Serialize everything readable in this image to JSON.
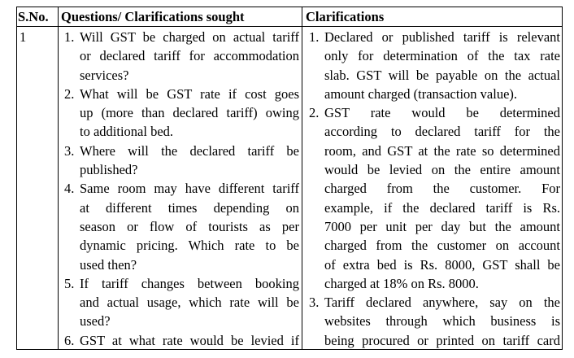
{
  "headers": {
    "sno": "S.No.",
    "questions": "Questions/ Clarifications sought",
    "clarifications": "Clarifications"
  },
  "row": {
    "sno": "1",
    "questions": [
      {
        "num": "1.",
        "lines": [
          "Will GST be charged on actual tariff",
          "or declared tariff for accommodation",
          "services?"
        ]
      },
      {
        "num": "2.",
        "lines": [
          "What will be GST rate if cost goes",
          "up (more than declared tariff) owing",
          "to additional bed."
        ]
      },
      {
        "num": "3.",
        "lines": [
          "Where will the declared tariff be",
          "published?"
        ]
      },
      {
        "num": "4.",
        "lines": [
          "Same room may have different tariff",
          "at different times depending on",
          "season or flow of tourists as per",
          "dynamic pricing. Which rate to be",
          "used then?"
        ]
      },
      {
        "num": "5.",
        "lines": [
          "If tariff changes between booking",
          "and actual usage, which rate will be",
          "used?"
        ]
      },
      {
        "num": "6.",
        "lines": [
          "GST at what rate would be levied if"
        ],
        "continues": true
      }
    ],
    "clarifications": [
      {
        "num": "1.",
        "lines": [
          "Declared or published tariff is relevant",
          "only for determination of the tax rate",
          "slab. GST will be payable on the actual",
          "amount charged (transaction value)."
        ]
      },
      {
        "num": "2.",
        "lines": [
          "GST rate would be determined",
          "according to declared tariff for the",
          "room, and GST at the rate so determined",
          "would be levied on the entire amount",
          "charged from the customer. For",
          "example, if the declared tariff is Rs.",
          "7000 per unit per day but the amount",
          "charged from the customer on account",
          "of extra bed is Rs. 8000, GST shall be",
          "charged at 18% on Rs. 8000."
        ]
      },
      {
        "num": "3.",
        "lines": [
          "Tariff declared anywhere, say on the",
          "websites through which business is",
          "being procured or printed on tariff card"
        ],
        "continues": true
      }
    ]
  }
}
